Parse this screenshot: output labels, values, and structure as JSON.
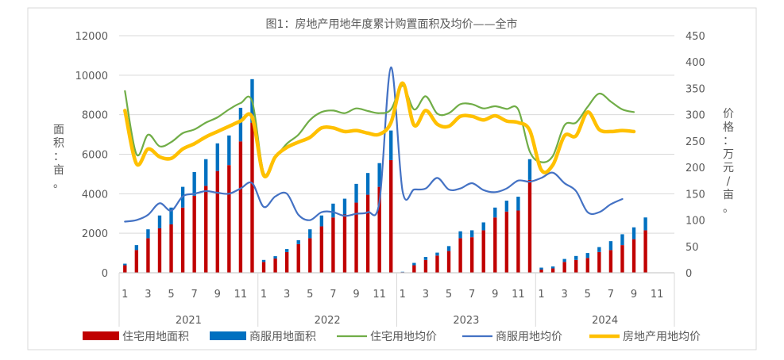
{
  "chart_data": {
    "type": "bar+line",
    "title": "图1：房地产用地年度累计购置面积及均价——全市",
    "ylabel_left": "面积：亩。",
    "ylabel_right": "价格：万元/亩。",
    "ylim_left": [
      0,
      12000
    ],
    "ylim_right": [
      0,
      450
    ],
    "yticks_left": [
      "0",
      "2000",
      "4000",
      "6000",
      "8000",
      "10000",
      "12000"
    ],
    "yticks_right": [
      "0",
      "50",
      "100",
      "150",
      "200",
      "250",
      "300",
      "350",
      "400",
      "450"
    ],
    "years": [
      "2021",
      "2022",
      "2023",
      "2024"
    ],
    "xtick_labels": [
      "1",
      "3",
      "5",
      "7",
      "9",
      "11",
      "1",
      "3",
      "5",
      "7",
      "9",
      "11",
      "1",
      "3",
      "5",
      "7",
      "9",
      "11",
      "1",
      "3",
      "5",
      "7",
      "9",
      "11"
    ],
    "legend_position": "bottom",
    "series": [
      {
        "name": "住宅用地面积",
        "kind": "bar",
        "color": "#C00000",
        "axis": "left",
        "values": [
          [
            380,
            1150,
            1750,
            2250,
            2450,
            3300,
            3900,
            4400,
            5150,
            5450,
            6650,
            7600
          ],
          [
            550,
            720,
            1050,
            1450,
            1750,
            2350,
            2800,
            2950,
            3550,
            3950,
            4350,
            5700
          ],
          [
            30,
            380,
            650,
            870,
            1100,
            1750,
            1800,
            2150,
            2800,
            3100,
            3150,
            4700
          ],
          [
            160,
            220,
            550,
            650,
            750,
            1050,
            1150,
            1400,
            1700,
            2150
          ]
        ]
      },
      {
        "name": "商服用地面积",
        "kind": "bar",
        "color": "#0070C0",
        "axis": "left",
        "values": [
          [
            80,
            250,
            450,
            650,
            850,
            1050,
            1200,
            1350,
            1400,
            1500,
            1700,
            2200
          ],
          [
            100,
            120,
            150,
            200,
            450,
            550,
            700,
            800,
            950,
            1100,
            1200,
            1500
          ],
          [
            20,
            120,
            150,
            150,
            250,
            350,
            350,
            400,
            500,
            550,
            700,
            1050
          ],
          [
            100,
            100,
            150,
            200,
            250,
            250,
            450,
            550,
            600,
            650
          ]
        ]
      },
      {
        "name": "住宅用地均价",
        "kind": "line",
        "color": "#70AD47",
        "axis": "right",
        "values": [
          [
            345,
            225,
            262,
            240,
            248,
            265,
            272,
            285,
            295,
            310,
            322,
            325
          ],
          [
            190,
            218,
            245,
            262,
            290,
            305,
            308,
            303,
            312,
            307,
            303,
            310
          ],
          [
            355,
            310,
            335,
            302,
            303,
            320,
            320,
            312,
            316,
            311,
            310,
            230
          ],
          [
            210,
            222,
            280,
            285,
            315,
            340,
            325,
            310,
            305
          ]
        ]
      },
      {
        "name": "商服用地均价",
        "kind": "line",
        "color": "#4472C4",
        "axis": "right",
        "values": [
          [
            97,
            100,
            110,
            132,
            118,
            145,
            150,
            155,
            152,
            150,
            160,
            170
          ],
          [
            125,
            145,
            150,
            110,
            100,
            115,
            115,
            108,
            112,
            115,
            135,
            390
          ],
          [
            155,
            158,
            160,
            180,
            158,
            160,
            170,
            157,
            153,
            160,
            175,
            173
          ],
          [
            180,
            190,
            170,
            155,
            115,
            115,
            130,
            140
          ]
        ]
      },
      {
        "name": "房地产用地均价",
        "kind": "line",
        "color": "#FFC000",
        "axis": "right",
        "values": [
          [
            308,
            207,
            235,
            220,
            217,
            235,
            245,
            258,
            268,
            278,
            288,
            295
          ],
          [
            185,
            220,
            238,
            248,
            257,
            275,
            275,
            268,
            270,
            265,
            263,
            285
          ],
          [
            360,
            280,
            308,
            282,
            278,
            297,
            297,
            290,
            298,
            288,
            285,
            270
          ],
          [
            195,
            205,
            260,
            260,
            305,
            272,
            268,
            270,
            268
          ]
        ]
      }
    ]
  }
}
